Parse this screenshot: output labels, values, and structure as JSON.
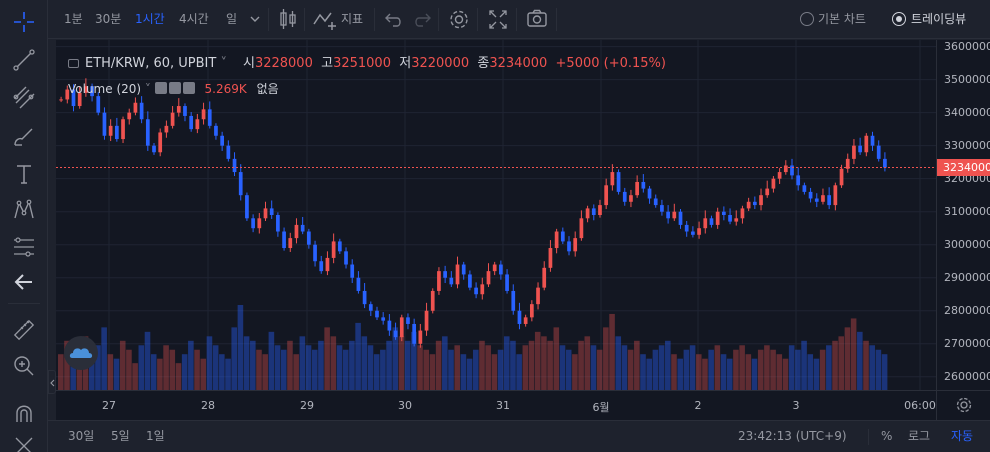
{
  "toolbar": {
    "intervals": [
      "1분",
      "30분",
      "1시간",
      "4시간",
      "일"
    ],
    "active_interval": "1시간",
    "indicators_label": "지표",
    "chart_types": [
      "기본 차트",
      "트레이딩뷰"
    ],
    "selected_chart_type": "트레이딩뷰"
  },
  "legend": {
    "symbol": "ETH/KRW, 60, UPBIT",
    "open_label": "시",
    "open": "3228000",
    "high_label": "고",
    "high": "3251000",
    "low_label": "저",
    "low": "3220000",
    "close_label": "종",
    "close": "3234000",
    "change": "+5000 (+0.15%)"
  },
  "volume_legend": {
    "label": "Volume (20)",
    "value": "5.269K",
    "extra": "없음"
  },
  "price_scale": {
    "labels": [
      "3600000",
      "3500000",
      "3400000",
      "3300000",
      "3200000",
      "3100000",
      "3000000",
      "2900000",
      "2800000",
      "2700000",
      "2600000"
    ],
    "current": "3234000"
  },
  "time_scale": {
    "labels": [
      "27",
      "28",
      "29",
      "30",
      "31",
      "6월",
      "2",
      "3",
      "06:00"
    ]
  },
  "bottom": {
    "ranges": [
      "30일",
      "5일",
      "1일"
    ],
    "clock": "23:42:13 (UTC+9)",
    "percent": "%",
    "log": "로그",
    "auto": "자동"
  },
  "colors": {
    "up": "#ef5350",
    "down": "#2962ff",
    "background": "#131722",
    "accent": "#2962ff"
  },
  "chart_data": {
    "type": "candlestick",
    "interval": "60",
    "ylim": [
      2560000,
      3620000
    ],
    "x_labels": [
      "27",
      "28",
      "29",
      "30",
      "31",
      "6월",
      "2",
      "3",
      "06:00"
    ],
    "closes": [
      3440000,
      3470000,
      3420000,
      3460000,
      3480000,
      3450000,
      3400000,
      3330000,
      3360000,
      3320000,
      3380000,
      3400000,
      3430000,
      3380000,
      3300000,
      3280000,
      3340000,
      3360000,
      3400000,
      3420000,
      3390000,
      3350000,
      3380000,
      3410000,
      3360000,
      3330000,
      3300000,
      3260000,
      3220000,
      3150000,
      3080000,
      3050000,
      3080000,
      3110000,
      3090000,
      3040000,
      2990000,
      3020000,
      3060000,
      3040000,
      3000000,
      2950000,
      2920000,
      2960000,
      3010000,
      2980000,
      2940000,
      2900000,
      2860000,
      2820000,
      2800000,
      2780000,
      2770000,
      2740000,
      2720000,
      2780000,
      2760000,
      2700000,
      2740000,
      2800000,
      2860000,
      2920000,
      2900000,
      2880000,
      2940000,
      2910000,
      2870000,
      2850000,
      2880000,
      2920000,
      2940000,
      2910000,
      2860000,
      2800000,
      2760000,
      2780000,
      2820000,
      2870000,
      2930000,
      2990000,
      3040000,
      3010000,
      2980000,
      3020000,
      3080000,
      3110000,
      3090000,
      3120000,
      3180000,
      3220000,
      3160000,
      3130000,
      3150000,
      3190000,
      3170000,
      3140000,
      3120000,
      3100000,
      3080000,
      3100000,
      3060000,
      3040000,
      3030000,
      3050000,
      3080000,
      3060000,
      3100000,
      3090000,
      3070000,
      3080000,
      3110000,
      3130000,
      3120000,
      3150000,
      3170000,
      3200000,
      3220000,
      3240000,
      3210000,
      3180000,
      3160000,
      3140000,
      3130000,
      3150000,
      3120000,
      3180000,
      3230000,
      3260000,
      3300000,
      3280000,
      3330000,
      3300000,
      3260000,
      3234000
    ],
    "volumes": [
      40,
      55,
      30,
      45,
      60,
      35,
      50,
      70,
      40,
      35,
      55,
      45,
      30,
      50,
      65,
      40,
      35,
      50,
      45,
      30,
      40,
      55,
      45,
      35,
      60,
      50,
      40,
      35,
      70,
      95,
      60,
      55,
      45,
      40,
      65,
      50,
      45,
      55,
      40,
      60,
      50,
      45,
      55,
      70,
      60,
      50,
      45,
      55,
      75,
      60,
      50,
      40,
      45,
      55,
      70,
      60,
      55,
      65,
      50,
      45,
      40,
      55,
      60,
      45,
      50,
      40,
      35,
      45,
      55,
      50,
      40,
      45,
      60,
      55,
      40,
      50,
      55,
      65,
      60,
      55,
      70,
      50,
      45,
      40,
      55,
      60,
      50,
      45,
      70,
      85,
      60,
      50,
      45,
      55,
      40,
      35,
      45,
      50,
      55,
      40,
      35,
      45,
      50,
      40,
      35,
      45,
      50,
      40,
      35,
      45,
      50,
      40,
      35,
      45,
      50,
      45,
      40,
      35,
      50,
      45,
      55,
      40,
      35,
      45,
      50,
      55,
      60,
      70,
      80,
      65,
      55,
      50,
      45,
      40
    ]
  }
}
